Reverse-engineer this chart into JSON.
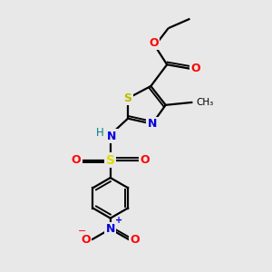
{
  "bg_color": "#e8e8e8",
  "bond_color": "#000000",
  "bond_width": 1.6,
  "fig_size": [
    3.0,
    3.0
  ],
  "dpi": 100,
  "colors": {
    "S": "#cccc00",
    "N": "#0000dd",
    "O": "#ff0000",
    "H": "#008080",
    "C": "#000000",
    "S_sulfonyl": "#dddd00"
  }
}
